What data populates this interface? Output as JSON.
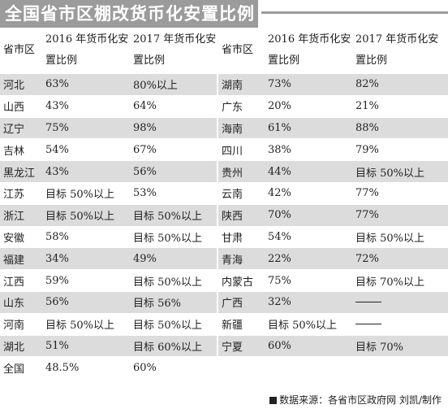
{
  "title": "全国省市区棚改货币化安置比例",
  "headers": {
    "region": "省市区",
    "y2016": "2016 年货币化安置比例",
    "y2017": "2017 年货币化安置比例"
  },
  "left_rows": [
    {
      "region": "河北",
      "y2016": "63%",
      "y2017": "80%以上"
    },
    {
      "region": "山西",
      "y2016": "43%",
      "y2017": "64%"
    },
    {
      "region": "辽宁",
      "y2016": "75%",
      "y2017": "98%"
    },
    {
      "region": "吉林",
      "y2016": "54%",
      "y2017": "67%"
    },
    {
      "region": "黑龙江",
      "y2016": "43%",
      "y2017": "56%"
    },
    {
      "region": "江苏",
      "y2016": "目标 50%以上",
      "y2017": "53%"
    },
    {
      "region": "浙江",
      "y2016": "目标 50%以上",
      "y2017": "目标 50%以上"
    },
    {
      "region": "安徽",
      "y2016": "58%",
      "y2017": "目标 50%以上"
    },
    {
      "region": "福建",
      "y2016": "34%",
      "y2017": "49%"
    },
    {
      "region": "江西",
      "y2016": "59%",
      "y2017": "目标 50%以上"
    },
    {
      "region": "山东",
      "y2016": "56%",
      "y2017": "目标 56%"
    },
    {
      "region": "河南",
      "y2016": "目标 50%以上",
      "y2017": "目标 50%以上"
    },
    {
      "region": "湖北",
      "y2016": "51%",
      "y2017": "目标 60%以上"
    },
    {
      "region": "全国",
      "y2016": "48.5%",
      "y2017": "60%"
    }
  ],
  "right_rows": [
    {
      "region": "湖南",
      "y2016": "73%",
      "y2017": "82%"
    },
    {
      "region": "广东",
      "y2016": "20%",
      "y2017": "21%"
    },
    {
      "region": "海南",
      "y2016": "61%",
      "y2017": "88%"
    },
    {
      "region": "四川",
      "y2016": "38%",
      "y2017": "79%"
    },
    {
      "region": "贵州",
      "y2016": "44%",
      "y2017": "目标 50%以上"
    },
    {
      "region": "云南",
      "y2016": "42%",
      "y2017": "77%"
    },
    {
      "region": "陕西",
      "y2016": "70%",
      "y2017": "77%"
    },
    {
      "region": "甘肃",
      "y2016": "54%",
      "y2017": "目标 50%以上"
    },
    {
      "region": "青海",
      "y2016": "22%",
      "y2017": "72%"
    },
    {
      "region": "内蒙古",
      "y2016": "75%",
      "y2017": "目标 70%以上"
    },
    {
      "region": "广西",
      "y2016": "32%",
      "y2017": "—"
    },
    {
      "region": "新疆",
      "y2016": "目标 50%以上",
      "y2017": "—"
    },
    {
      "region": "宁夏",
      "y2016": "60%",
      "y2017": "目标 70%"
    },
    {
      "region": "",
      "y2016": "",
      "y2017": ""
    }
  ],
  "source": "数据来源：各省市区政府网 刘凯/制作"
}
